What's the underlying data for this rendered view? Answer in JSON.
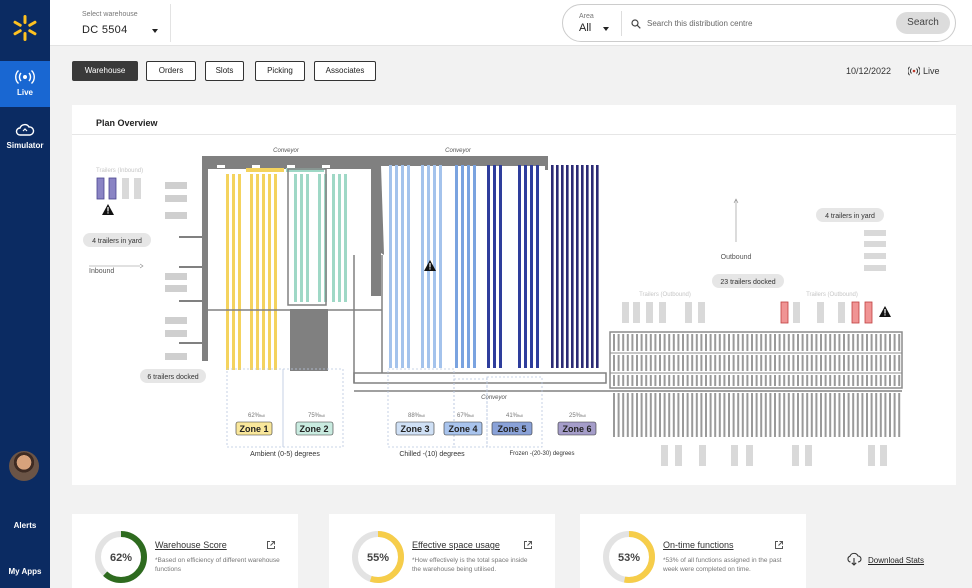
{
  "nav": {
    "items": [
      {
        "label": "Live",
        "icon": "broadcast-icon",
        "active": true
      },
      {
        "label": "Simulator",
        "icon": "cloud-icon",
        "active": false
      }
    ],
    "alerts_label": "Alerts",
    "apps_label": "My Apps"
  },
  "header": {
    "warehouse_label": "Select warehouse",
    "warehouse_value": "DC  5504",
    "area_label": "Area",
    "area_value": "All",
    "search_placeholder": "Search this distribution centre",
    "search_button": "Search"
  },
  "tabs": [
    "Warehouse",
    "Orders",
    "Slots",
    "Picking",
    "Associates"
  ],
  "date": "10/12/2022",
  "live_label": "Live",
  "plan": {
    "title": "Plan Overview",
    "conveyor_label": "Conveyor",
    "inbound_trailers_label": "Trailers (Inbound)",
    "inbound_yard": "4 trailers in yard",
    "inbound_label": "Inbound",
    "inbound_docked": "6 trailers docked",
    "outbound_label": "Outbound",
    "outbound_docked": "23 trailers docked",
    "outbound_yard": "4 trailers in yard",
    "outbound_trailers_label": "Trailers (Outbound)",
    "zones": [
      {
        "name": "Zone 1",
        "util": "62%",
        "util_unit": "full",
        "color": "#f9e79b",
        "rack": "#f4d35e"
      },
      {
        "name": "Zone 2",
        "util": "75%",
        "util_unit": "full",
        "color": "#c9ebe0",
        "rack": "#9fd8c6"
      },
      {
        "name": "Zone 3",
        "util": "88%",
        "util_unit": "full",
        "color": "#cfe0f5",
        "rack": "#a4c3ec"
      },
      {
        "name": "Zone 4",
        "util": "67%",
        "util_unit": "full",
        "color": "#a9c4ed",
        "rack": "#7aa3e0"
      },
      {
        "name": "Zone 5",
        "util": "41%",
        "util_unit": "full",
        "color": "#8aa2d8",
        "rack": "#2e3d9c"
      },
      {
        "name": "Zone 6",
        "util": "25%",
        "util_unit": "full",
        "color": "#a59dc9",
        "rack": "#2b2a75"
      }
    ],
    "temperature_groups": [
      {
        "label": "Ambient  (0-5) degrees"
      },
      {
        "label": "Chilled  -(10) degrees"
      },
      {
        "label": "Frozen  -(20-30) degrees"
      }
    ]
  },
  "stats": [
    {
      "value": "62%",
      "percent": 62,
      "title": "Warehouse Score",
      "desc": "*Based on efficiency of different warehouse functions",
      "color": "#2e6b1f"
    },
    {
      "value": "55%",
      "percent": 55,
      "title": "Effective space usage",
      "desc": "*How effectively is the total space inside the warehouse being utilised.",
      "color": "#f6cd4a"
    },
    {
      "value": "53%",
      "percent": 53,
      "title": "On-time functions",
      "desc": "*53% of all functions assigned in the past week were completed on time.",
      "color": "#f6cd4a"
    }
  ],
  "download_label": "Download Stats"
}
